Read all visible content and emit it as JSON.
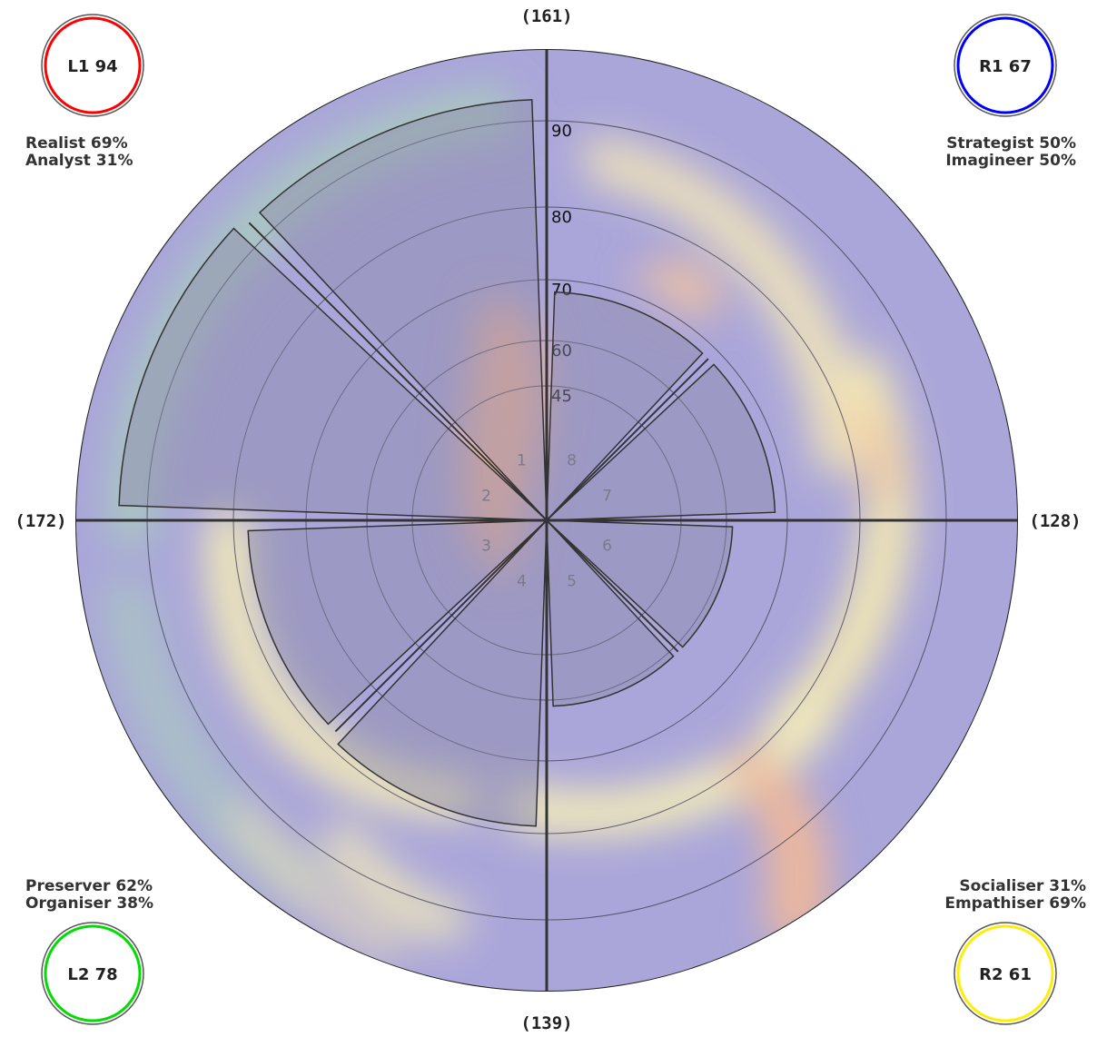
{
  "chart_data": {
    "type": "polar-area",
    "axis_totals": {
      "top": "(161)",
      "right": "(128)",
      "bottom": "(139)",
      "left": "(172)"
    },
    "rings": [
      "45",
      "60",
      "70",
      "80",
      "90"
    ],
    "ring_values": [
      45,
      60,
      70,
      80,
      90
    ],
    "sectors": [
      {
        "label": "1",
        "value": 93
      },
      {
        "label": "2",
        "value": 94
      },
      {
        "label": "3",
        "value": 78
      },
      {
        "label": "4",
        "value": 79
      },
      {
        "label": "5",
        "value": 61
      },
      {
        "label": "6",
        "value": 61
      },
      {
        "label": "7",
        "value": 68
      },
      {
        "label": "8",
        "value": 68
      }
    ],
    "quadrants": [
      {
        "badge": "L1 94",
        "color": "#ff0000",
        "lines": [
          "Realist 69%",
          "Analyst 31%"
        ],
        "position": "top-left"
      },
      {
        "badge": "R1 67",
        "color": "#0000ff",
        "lines": [
          "Strategist 50%",
          "Imagineer 50%"
        ],
        "position": "top-right"
      },
      {
        "badge": "L2 78",
        "color": "#00dd00",
        "lines": [
          "Preserver 62%",
          "Organiser 38%"
        ],
        "position": "bottom-left"
      },
      {
        "badge": "R2 61",
        "color": "#ffee00",
        "lines": [
          "Socialiser 31%",
          "Empathiser 69%"
        ],
        "position": "bottom-right"
      }
    ]
  }
}
